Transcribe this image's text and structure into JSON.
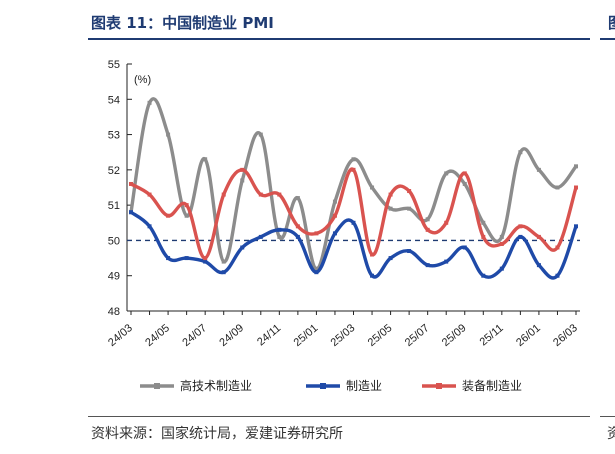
{
  "header": {
    "title": "图表 11：中国制造业 PMI",
    "right_fragment": "图"
  },
  "footer": {
    "source": "资料来源：国家统计局，爱建证券研究所",
    "right_fragment": "资"
  },
  "chart_data": {
    "type": "line",
    "ylabel": "(%)",
    "ylim": [
      48,
      55
    ],
    "yticks": [
      48,
      49,
      50,
      51,
      52,
      53,
      54,
      55
    ],
    "grid": false,
    "legend": "bottom",
    "reference_line": {
      "value": 50,
      "style": "dashed",
      "color": "#1f3b72"
    },
    "x_tick_labels": [
      "24/03",
      "24/05",
      "24/07",
      "24/09",
      "24/11",
      "25/01",
      "25/03",
      "25/05",
      "25/07",
      "25/09",
      "25/11",
      "26/01",
      "26/03"
    ],
    "x": [
      "24/03",
      "24/04",
      "24/05",
      "24/06",
      "24/07",
      "24/08",
      "24/09",
      "24/10",
      "24/11",
      "24/12",
      "25/01",
      "25/02",
      "25/03",
      "25/04",
      "25/05",
      "25/06",
      "25/07",
      "25/08",
      "25/09",
      "25/10",
      "25/11",
      "25/12",
      "26/01",
      "26/02",
      "26/03"
    ],
    "series": [
      {
        "name": "高技术制造业",
        "color": "#8c8c8c",
        "values": [
          50.8,
          53.9,
          53.0,
          50.7,
          52.3,
          49.4,
          51.7,
          53.0,
          50.1,
          51.2,
          49.2,
          51.1,
          52.3,
          51.5,
          50.9,
          50.9,
          50.6,
          51.9,
          51.6,
          50.5,
          50.1,
          52.5,
          52.0,
          51.5,
          52.1
        ]
      },
      {
        "name": "制造业",
        "color": "#1f4aa8",
        "values": [
          50.8,
          50.4,
          49.5,
          49.5,
          49.4,
          49.1,
          49.8,
          50.1,
          50.3,
          50.1,
          49.1,
          50.2,
          50.5,
          49.0,
          49.5,
          49.7,
          49.3,
          49.4,
          49.8,
          49.0,
          49.2,
          50.1,
          49.3,
          49.0,
          50.4
        ]
      },
      {
        "name": "装备制造业",
        "color": "#d9534f",
        "values": [
          51.6,
          51.3,
          50.7,
          51.0,
          49.5,
          51.3,
          52.0,
          51.3,
          51.3,
          50.4,
          50.2,
          50.7,
          52.0,
          49.6,
          51.3,
          51.4,
          50.3,
          50.5,
          51.9,
          50.1,
          49.9,
          50.4,
          50.1,
          49.8,
          51.5
        ]
      }
    ]
  }
}
